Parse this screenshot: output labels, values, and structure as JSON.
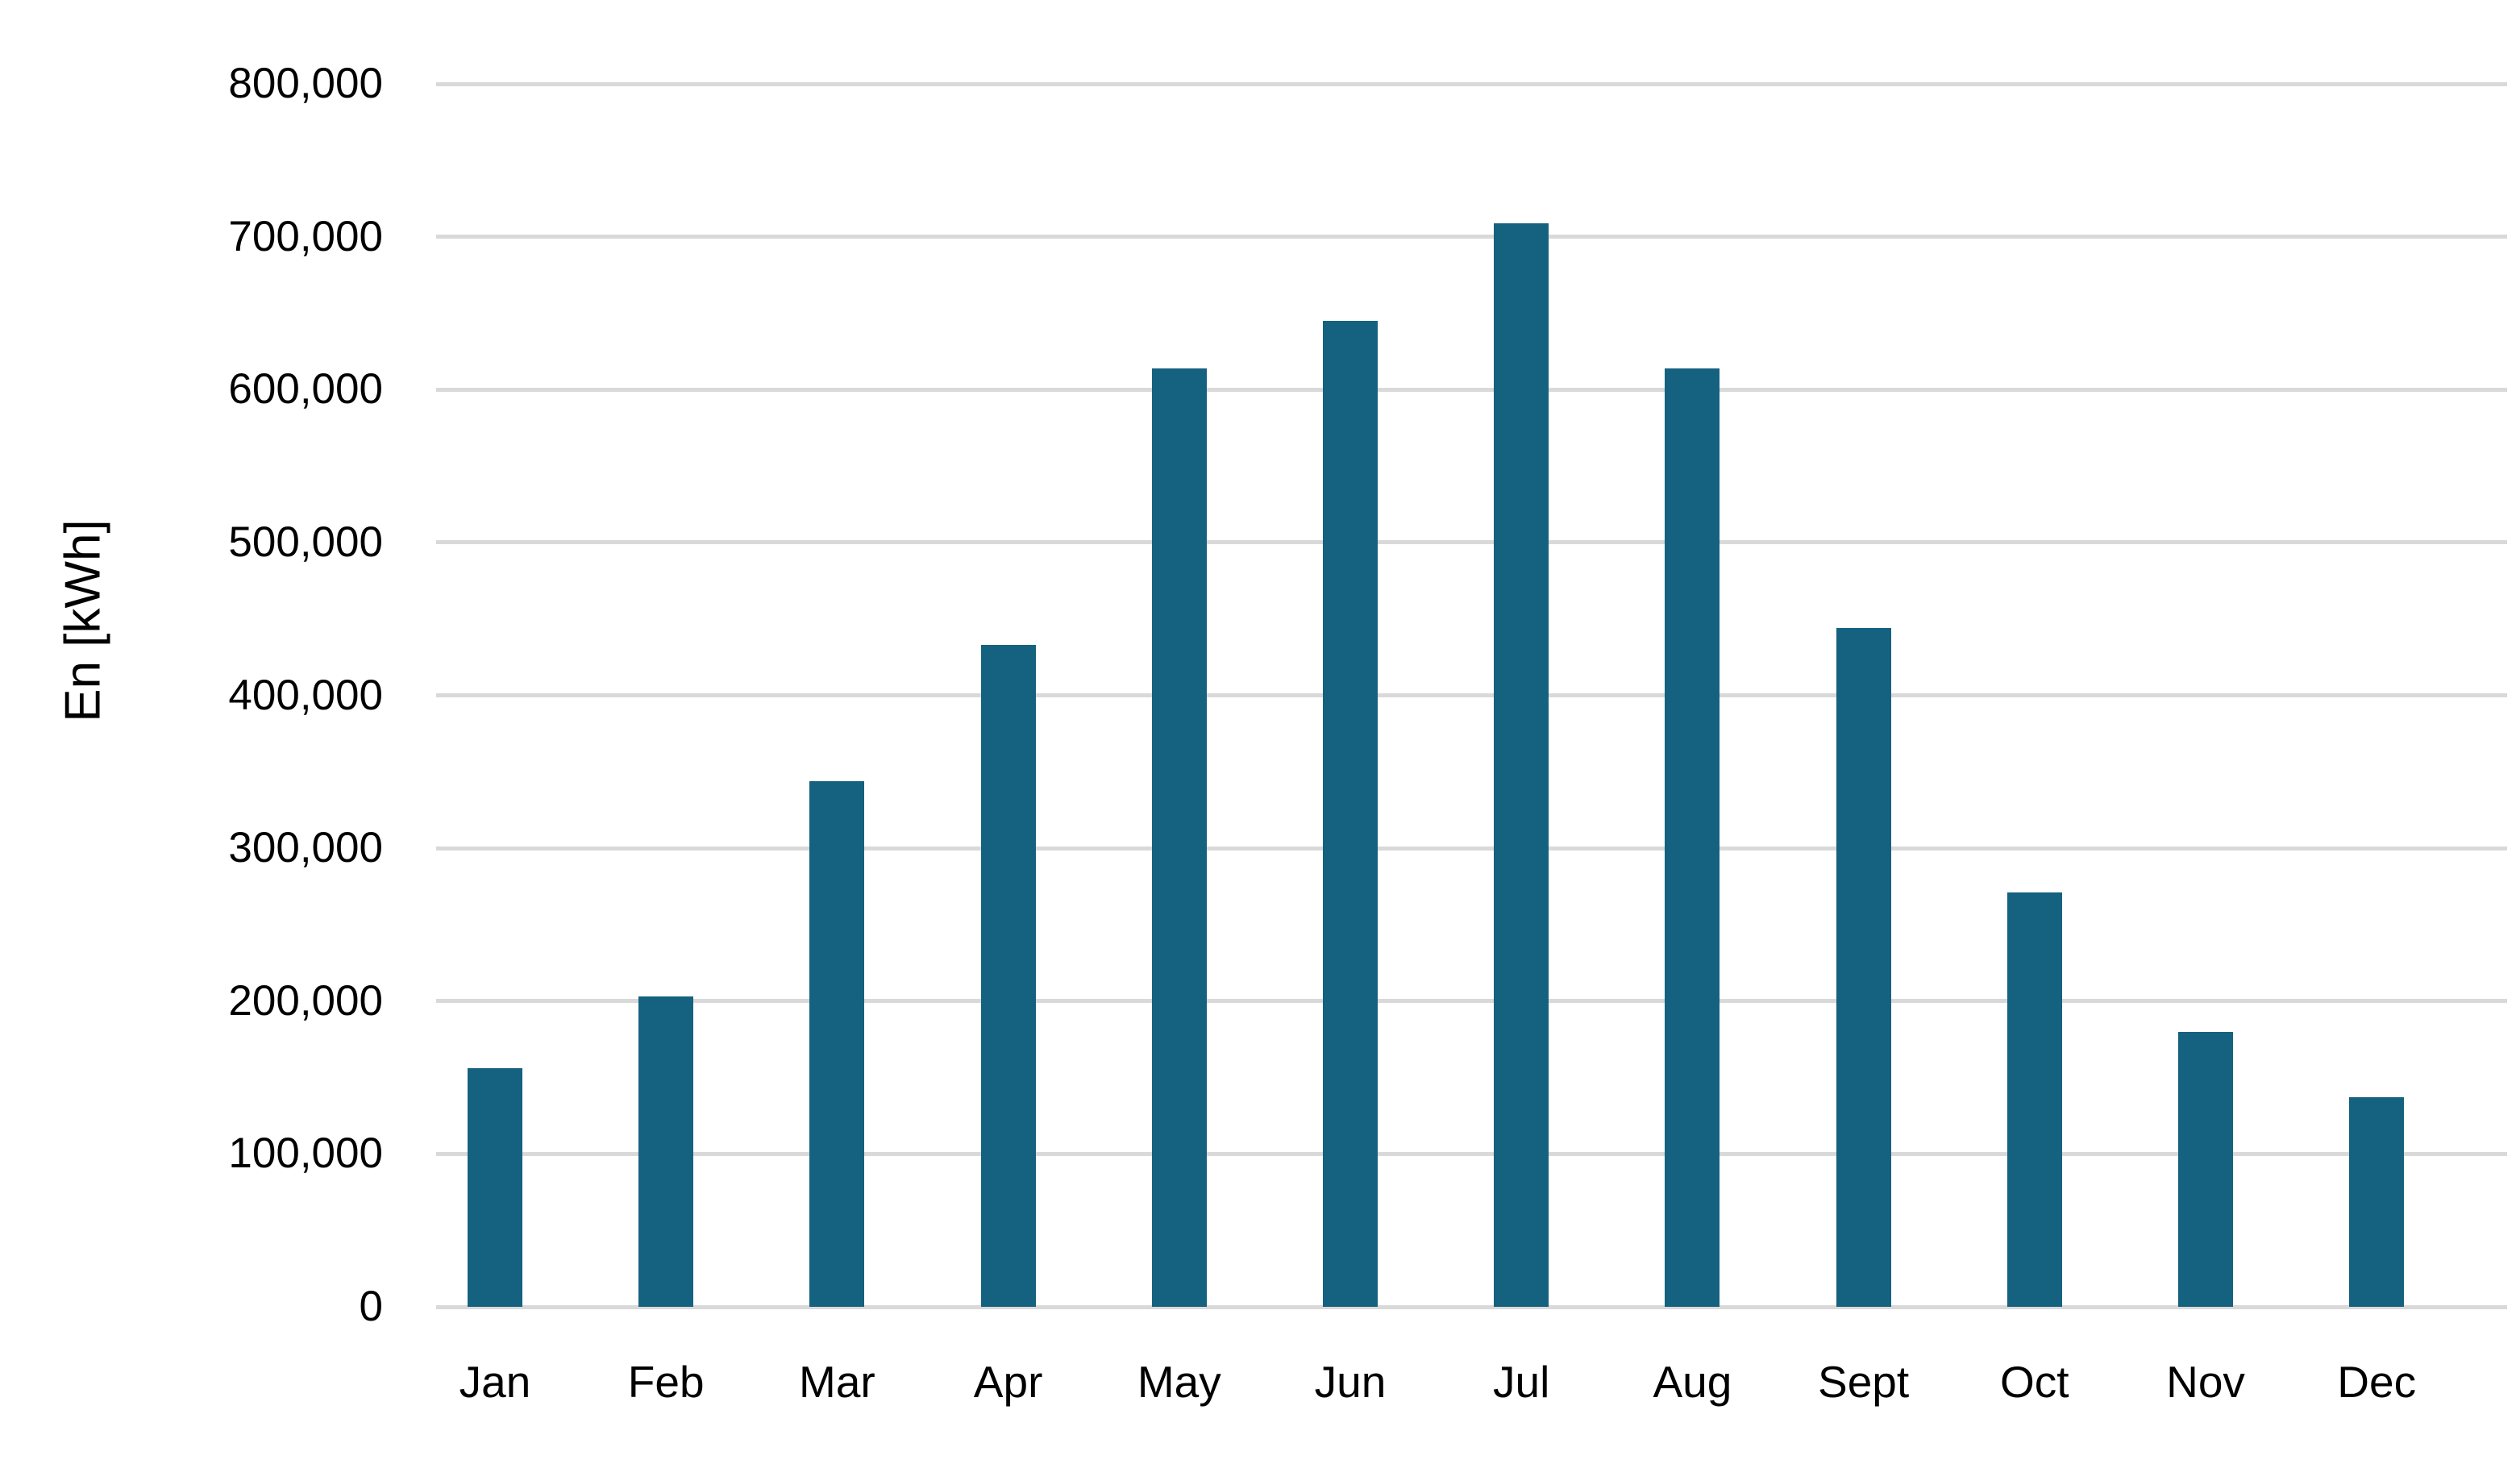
{
  "chart_data": {
    "type": "bar",
    "title": "",
    "xlabel": "",
    "ylabel": "En [kWh]",
    "categories": [
      "Jan",
      "Feb",
      "Mar",
      "Apr",
      "May",
      "Jun",
      "Jul",
      "Aug",
      "Sept",
      "Oct",
      "Nov",
      "Dec"
    ],
    "values": [
      156000,
      203000,
      344000,
      433000,
      614000,
      645000,
      709000,
      614000,
      444000,
      271000,
      180000,
      137000
    ],
    "y_axis": {
      "min": 0,
      "max": 800000,
      "tick_values": [
        0,
        100000,
        200000,
        300000,
        400000,
        500000,
        600000,
        700000,
        800000
      ],
      "tick_labels": [
        "0",
        "100,000",
        "200,000",
        "300,000",
        "400,000",
        "500,000",
        "600,000",
        "700,000",
        "800,000"
      ]
    },
    "grid": true,
    "legend": "none",
    "colors": {
      "bar": "#156180",
      "gridline": "#D9D9D9",
      "background": "#FFFFFF",
      "text": "#000000"
    }
  }
}
